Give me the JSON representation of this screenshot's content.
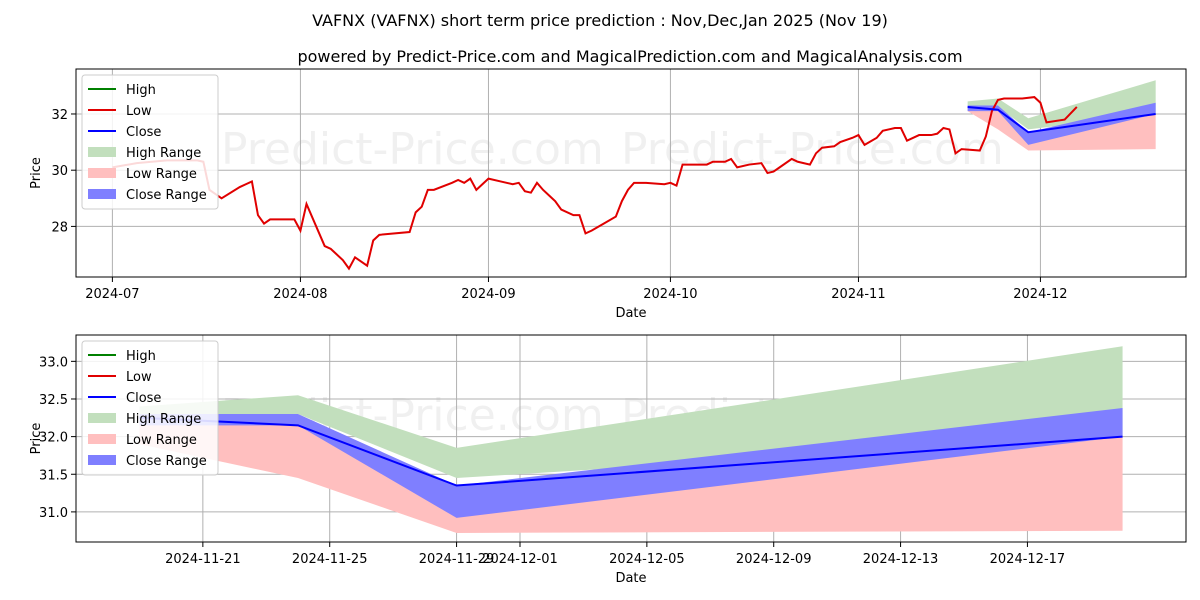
{
  "title": "VAFNX (VAFNX) short term price prediction : Nov,Dec,Jan 2025 (Nov 19)",
  "subtitle": "powered by Predict-Price.com and MagicalPrediction.com and MagicalAnalysis.com",
  "watermark": "Predict-Price.com",
  "colors": {
    "high": "#008000",
    "low": "#e00000",
    "close": "#0000ff",
    "high_range": "#c2dfbd",
    "low_range": "#ffbfbf",
    "close_range": "#7f7fff",
    "grid": "#b0b0b0"
  },
  "legend_labels": [
    "High",
    "Low",
    "Close",
    "High Range",
    "Low Range",
    "Close Range"
  ],
  "chart_data": [
    {
      "type": "line",
      "xlabel": "Date",
      "ylabel": "Price",
      "ylim": [
        26.2,
        33.6
      ],
      "yticks": [
        28,
        30,
        32
      ],
      "x_range": [
        "2024-06-25",
        "2024-12-25"
      ],
      "xticks": [
        "2024-07",
        "2024-08",
        "2024-09",
        "2024-10",
        "2024-11",
        "2024-12"
      ],
      "grid": true,
      "legend": "top-left",
      "history": {
        "name": "Low",
        "points": [
          [
            "2024-07-01",
            30.1
          ],
          [
            "2024-07-05",
            30.25
          ],
          [
            "2024-07-10",
            30.35
          ],
          [
            "2024-07-15",
            30.35
          ],
          [
            "2024-07-16",
            30.3
          ],
          [
            "2024-07-17",
            29.3
          ],
          [
            "2024-07-18",
            29.15
          ],
          [
            "2024-07-19",
            29.0
          ],
          [
            "2024-07-22",
            29.4
          ],
          [
            "2024-07-23",
            29.5
          ],
          [
            "2024-07-24",
            29.6
          ],
          [
            "2024-07-25",
            28.4
          ],
          [
            "2024-07-26",
            28.1
          ],
          [
            "2024-07-27",
            28.25
          ],
          [
            "2024-07-31",
            28.25
          ],
          [
            "2024-08-01",
            27.85
          ],
          [
            "2024-08-02",
            28.8
          ],
          [
            "2024-08-05",
            27.3
          ],
          [
            "2024-08-06",
            27.2
          ],
          [
            "2024-08-07",
            27.0
          ],
          [
            "2024-08-08",
            26.8
          ],
          [
            "2024-08-09",
            26.5
          ],
          [
            "2024-08-10",
            26.9
          ],
          [
            "2024-08-12",
            26.6
          ],
          [
            "2024-08-13",
            27.5
          ],
          [
            "2024-08-14",
            27.7
          ],
          [
            "2024-08-19",
            27.8
          ],
          [
            "2024-08-20",
            28.5
          ],
          [
            "2024-08-21",
            28.7
          ],
          [
            "2024-08-22",
            29.3
          ],
          [
            "2024-08-23",
            29.3
          ],
          [
            "2024-08-26",
            29.55
          ],
          [
            "2024-08-27",
            29.65
          ],
          [
            "2024-08-28",
            29.55
          ],
          [
            "2024-08-29",
            29.7
          ],
          [
            "2024-08-30",
            29.3
          ],
          [
            "2024-09-01",
            29.7
          ],
          [
            "2024-09-03",
            29.6
          ],
          [
            "2024-09-05",
            29.5
          ],
          [
            "2024-09-06",
            29.55
          ],
          [
            "2024-09-07",
            29.25
          ],
          [
            "2024-09-08",
            29.2
          ],
          [
            "2024-09-09",
            29.55
          ],
          [
            "2024-09-10",
            29.3
          ],
          [
            "2024-09-11",
            29.1
          ],
          [
            "2024-09-12",
            28.9
          ],
          [
            "2024-09-13",
            28.6
          ],
          [
            "2024-09-15",
            28.4
          ],
          [
            "2024-09-16",
            28.4
          ],
          [
            "2024-09-17",
            27.75
          ],
          [
            "2024-09-18",
            27.85
          ],
          [
            "2024-09-20",
            28.1
          ],
          [
            "2024-09-22",
            28.35
          ],
          [
            "2024-09-23",
            28.9
          ],
          [
            "2024-09-24",
            29.3
          ],
          [
            "2024-09-25",
            29.55
          ],
          [
            "2024-09-27",
            29.55
          ],
          [
            "2024-09-30",
            29.5
          ],
          [
            "2024-10-01",
            29.55
          ],
          [
            "2024-10-02",
            29.45
          ],
          [
            "2024-10-03",
            30.2
          ],
          [
            "2024-10-04",
            30.2
          ],
          [
            "2024-10-07",
            30.2
          ],
          [
            "2024-10-08",
            30.3
          ],
          [
            "2024-10-10",
            30.3
          ],
          [
            "2024-10-11",
            30.4
          ],
          [
            "2024-10-12",
            30.1
          ],
          [
            "2024-10-14",
            30.2
          ],
          [
            "2024-10-16",
            30.25
          ],
          [
            "2024-10-17",
            29.9
          ],
          [
            "2024-10-18",
            29.95
          ],
          [
            "2024-10-19",
            30.1
          ],
          [
            "2024-10-21",
            30.4
          ],
          [
            "2024-10-22",
            30.3
          ],
          [
            "2024-10-24",
            30.2
          ],
          [
            "2024-10-25",
            30.6
          ],
          [
            "2024-10-26",
            30.8
          ],
          [
            "2024-10-28",
            30.85
          ],
          [
            "2024-10-29",
            31.0
          ],
          [
            "2024-10-31",
            31.15
          ],
          [
            "2024-11-01",
            31.25
          ],
          [
            "2024-11-02",
            30.9
          ],
          [
            "2024-11-04",
            31.15
          ],
          [
            "2024-11-05",
            31.4
          ],
          [
            "2024-11-07",
            31.5
          ],
          [
            "2024-11-08",
            31.5
          ],
          [
            "2024-11-09",
            31.05
          ],
          [
            "2024-11-11",
            31.25
          ],
          [
            "2024-11-13",
            31.25
          ],
          [
            "2024-11-14",
            31.3
          ],
          [
            "2024-11-15",
            31.5
          ],
          [
            "2024-11-16",
            31.45
          ],
          [
            "2024-11-17",
            30.6
          ],
          [
            "2024-11-18",
            30.75
          ],
          [
            "2024-11-21",
            30.7
          ],
          [
            "2024-11-22",
            31.2
          ],
          [
            "2024-11-23",
            32.1
          ],
          [
            "2024-11-24",
            32.5
          ],
          [
            "2024-11-25",
            32.55
          ],
          [
            "2024-11-28",
            32.55
          ],
          [
            "2024-11-30",
            32.6
          ],
          [
            "2024-12-01",
            32.4
          ],
          [
            "2024-12-02",
            31.7
          ],
          [
            "2024-12-05",
            31.8
          ],
          [
            "2024-12-07",
            32.25
          ]
        ]
      },
      "forecast": {
        "dates": [
          "2024-11-19",
          "2024-11-24",
          "2024-11-29",
          "2024-12-20"
        ],
        "high_range": [
          [
            32.3,
            32.45
          ],
          [
            32.25,
            32.55
          ],
          [
            31.45,
            31.85
          ],
          [
            32.0,
            33.2
          ]
        ],
        "low_range": [
          [
            32.1,
            32.3
          ],
          [
            31.45,
            32.15
          ],
          [
            30.7,
            31.35
          ],
          [
            30.75,
            32.0
          ]
        ],
        "close_range": [
          [
            32.1,
            32.3
          ],
          [
            32.1,
            32.3
          ],
          [
            30.9,
            31.35
          ],
          [
            32.0,
            32.4
          ]
        ],
        "close": [
          32.25,
          32.15,
          31.35,
          32.0
        ]
      }
    },
    {
      "type": "line",
      "xlabel": "Date",
      "ylabel": "Price",
      "ylim": [
        30.6,
        33.35
      ],
      "yticks": [
        31.0,
        31.5,
        32.0,
        32.5,
        33.0
      ],
      "x_range": [
        "2024-11-17",
        "2024-12-22"
      ],
      "xticks": [
        "2024-11-21",
        "2024-11-25",
        "2024-11-29",
        "2024-12-01",
        "2024-12-05",
        "2024-12-09",
        "2024-12-13",
        "2024-12-17"
      ],
      "grid": true,
      "legend": "top-left",
      "forecast": {
        "dates": [
          "2024-11-19",
          "2024-11-24",
          "2024-11-29",
          "2024-12-20"
        ],
        "high_range": [
          [
            32.3,
            32.4
          ],
          [
            32.3,
            32.55
          ],
          [
            31.45,
            31.85
          ],
          [
            32.0,
            33.2
          ]
        ],
        "low_range": [
          [
            31.9,
            32.3
          ],
          [
            31.45,
            32.15
          ],
          [
            30.72,
            31.35
          ],
          [
            30.75,
            32.0
          ]
        ],
        "close_range": [
          [
            32.15,
            32.3
          ],
          [
            32.15,
            32.3
          ],
          [
            30.92,
            31.35
          ],
          [
            32.0,
            32.38
          ]
        ],
        "close": [
          32.25,
          32.15,
          31.35,
          32.0
        ]
      }
    }
  ]
}
